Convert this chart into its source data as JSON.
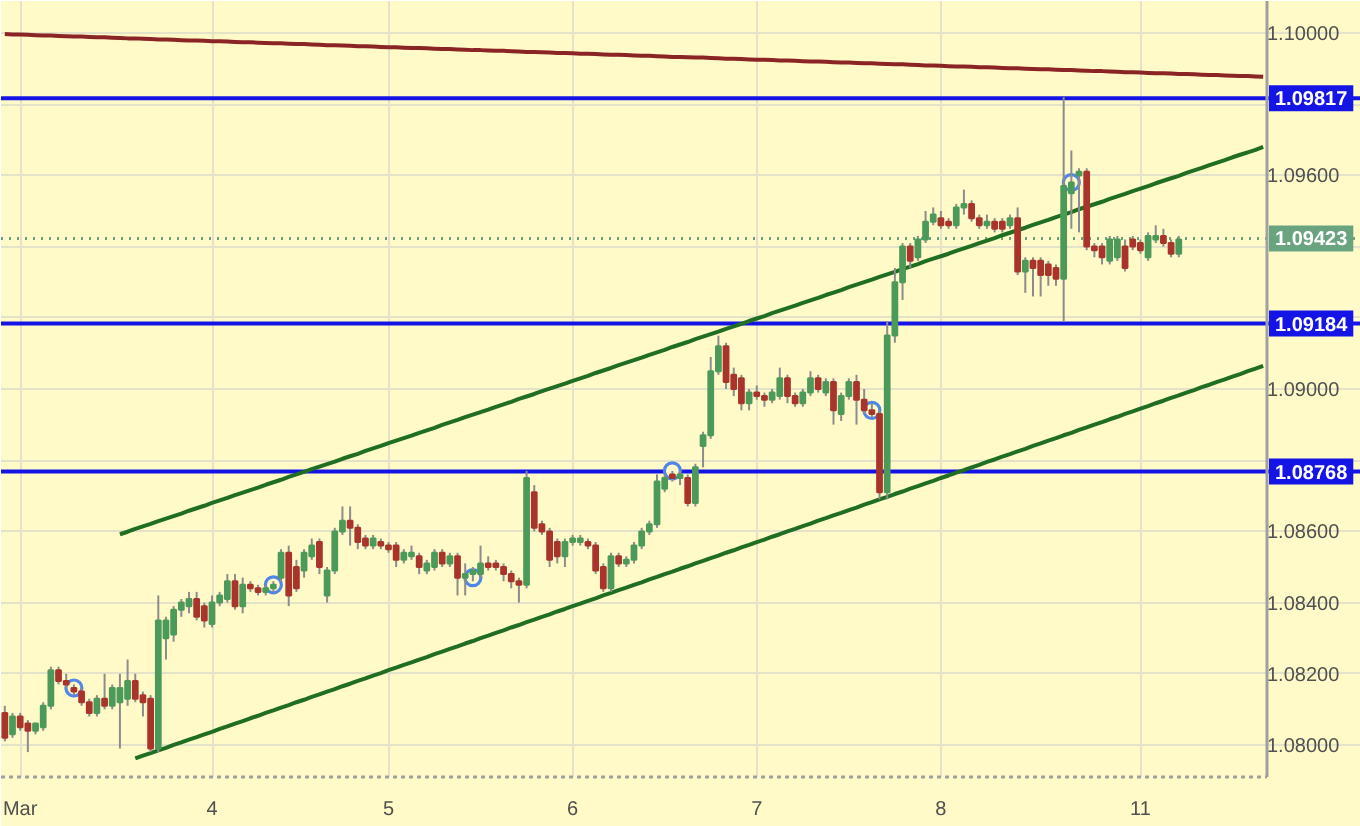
{
  "chart_data": {
    "type": "candlestick",
    "categories": [
      null,
      null,
      "Mar",
      null,
      null,
      null,
      null,
      null,
      null,
      null,
      null,
      null,
      null,
      null,
      null,
      null,
      null,
      null,
      null,
      null,
      null,
      null,
      null,
      null,
      null,
      null,
      null,
      "4",
      null,
      null,
      null,
      null,
      null,
      null,
      null,
      null,
      null,
      null,
      null,
      null,
      null,
      null,
      null,
      null,
      null,
      null,
      null,
      null,
      null,
      null,
      "5",
      null,
      null,
      null,
      null,
      null,
      null,
      null,
      null,
      null,
      null,
      null,
      null,
      null,
      null,
      null,
      null,
      null,
      null,
      null,
      null,
      null,
      null,
      null,
      "6",
      null,
      null,
      null,
      null,
      null,
      null,
      null,
      null,
      null,
      null,
      null,
      null,
      null,
      null,
      null,
      null,
      null,
      null,
      null,
      null,
      null,
      null,
      null,
      "7",
      null,
      null,
      null,
      null,
      null,
      null,
      null,
      null,
      null,
      null,
      null,
      null,
      null,
      null,
      null,
      null,
      null,
      null,
      null,
      null,
      null,
      null,
      null,
      "8",
      null,
      null,
      null,
      null,
      null,
      null,
      null,
      null,
      null,
      null,
      null,
      null,
      null,
      null,
      null,
      null,
      null,
      null,
      null,
      null,
      null,
      null,
      null,
      null,
      null,
      "11",
      null,
      null,
      null,
      null,
      null,
      null,
      null,
      null,
      null,
      null,
      null,
      null,
      null,
      null,
      null,
      null
    ],
    "ohlc": [
      [
        1.0809,
        1.0811,
        1.0801,
        1.0802
      ],
      [
        1.0803,
        1.0809,
        1.0802,
        1.0808
      ],
      [
        1.0808,
        1.0809,
        1.0804,
        1.0805
      ],
      [
        1.0806,
        1.0807,
        1.0798,
        1.0804
      ],
      [
        1.0804,
        1.0806,
        1.0803,
        1.0806
      ],
      [
        1.0805,
        1.0812,
        1.0804,
        1.0811
      ],
      [
        1.0811,
        1.0822,
        1.081,
        1.0821
      ],
      [
        1.0821,
        1.0822,
        1.0817,
        1.0818
      ],
      [
        1.0818,
        1.082,
        1.0816,
        1.0817
      ],
      [
        1.0816,
        1.0817,
        1.0814,
        1.0815
      ],
      [
        1.0815,
        1.0816,
        1.0811,
        1.0812
      ],
      [
        1.0812,
        1.0813,
        1.0808,
        1.0809
      ],
      [
        1.0809,
        1.0814,
        1.0808,
        1.0813
      ],
      [
        1.0813,
        1.082,
        1.081,
        1.0811
      ],
      [
        1.0811,
        1.0817,
        1.081,
        1.0816
      ],
      [
        1.0812,
        1.082,
        1.0799,
        1.0816
      ],
      [
        1.0813,
        1.0824,
        1.0811,
        1.0818
      ],
      [
        1.0818,
        1.082,
        1.0812,
        1.0813
      ],
      [
        1.0814,
        1.0815,
        1.0808,
        1.0812
      ],
      [
        1.0813,
        1.0814,
        1.0798,
        1.0799
      ],
      [
        1.0799,
        1.0842,
        1.0798,
        1.0835
      ],
      [
        1.083,
        1.0836,
        1.0824,
        1.0835
      ],
      [
        1.0831,
        1.0839,
        1.0829,
        1.0838
      ],
      [
        1.0838,
        1.0841,
        1.0836,
        1.084
      ],
      [
        1.0839,
        1.0843,
        1.0837,
        1.0841
      ],
      [
        1.0841,
        1.0843,
        1.0835,
        1.0836
      ],
      [
        1.0839,
        1.084,
        1.0833,
        1.0835
      ],
      [
        1.0834,
        1.0842,
        1.0833,
        1.084
      ],
      [
        1.084,
        1.0843,
        1.0839,
        1.0842
      ],
      [
        1.0841,
        1.0848,
        1.084,
        1.0846
      ],
      [
        1.0846,
        1.0848,
        1.0838,
        1.0839
      ],
      [
        1.0839,
        1.0847,
        1.0837,
        1.0845
      ],
      [
        1.0845,
        1.0846,
        1.0843,
        1.0844
      ],
      [
        1.0844,
        1.0845,
        1.0842,
        1.0843
      ],
      [
        1.0843,
        1.0845,
        1.0842,
        1.0844
      ],
      [
        1.0844,
        1.0846,
        1.0843,
        1.0845
      ],
      [
        1.0847,
        1.0855,
        1.0846,
        1.0854
      ],
      [
        1.0854,
        1.0856,
        1.0839,
        1.0842
      ],
      [
        1.085,
        1.0852,
        1.0843,
        1.0844
      ],
      [
        1.0849,
        1.0855,
        1.0847,
        1.0854
      ],
      [
        1.0853,
        1.0858,
        1.0852,
        1.0856
      ],
      [
        1.0857,
        1.0858,
        1.0848,
        1.085
      ],
      [
        1.0842,
        1.085,
        1.084,
        1.0849
      ],
      [
        1.0849,
        1.0861,
        1.0848,
        1.086
      ],
      [
        1.086,
        1.0867,
        1.0859,
        1.0863
      ],
      [
        1.0863,
        1.0867,
        1.0856,
        1.0861
      ],
      [
        1.0861,
        1.0862,
        1.0855,
        1.0857
      ],
      [
        1.0858,
        1.0859,
        1.0855,
        1.0856
      ],
      [
        1.0856,
        1.0859,
        1.0855,
        1.0858
      ],
      [
        1.0857,
        1.0858,
        1.0855,
        1.0856
      ],
      [
        1.0856,
        1.0857,
        1.0854,
        1.0855
      ],
      [
        1.0856,
        1.0857,
        1.085,
        1.0852
      ],
      [
        1.0852,
        1.0855,
        1.0851,
        1.0854
      ],
      [
        1.0853,
        1.0856,
        1.0852,
        1.0854
      ],
      [
        1.0853,
        1.0854,
        1.0848,
        1.085
      ],
      [
        1.0849,
        1.0852,
        1.0848,
        1.0851
      ],
      [
        1.085,
        1.0855,
        1.0849,
        1.0854
      ],
      [
        1.0854,
        1.0855,
        1.085,
        1.0851
      ],
      [
        1.0851,
        1.0854,
        1.085,
        1.0853
      ],
      [
        1.0853,
        1.0854,
        1.0842,
        1.0847
      ],
      [
        1.0847,
        1.0851,
        1.0842,
        1.0848
      ],
      [
        1.0848,
        1.085,
        1.0846,
        1.0849
      ],
      [
        1.0848,
        1.0856,
        1.0847,
        1.0851
      ],
      [
        1.0851,
        1.0853,
        1.0849,
        1.085
      ],
      [
        1.0851,
        1.0852,
        1.0849,
        1.085
      ],
      [
        1.085,
        1.0851,
        1.0846,
        1.0848
      ],
      [
        1.0848,
        1.0849,
        1.0844,
        1.0846
      ],
      [
        1.0846,
        1.0847,
        1.084,
        1.0845
      ],
      [
        1.0845,
        1.0877,
        1.0844,
        1.0875
      ],
      [
        1.0871,
        1.0873,
        1.086,
        1.0861
      ],
      [
        1.0862,
        1.0863,
        1.0859,
        1.086
      ],
      [
        1.086,
        1.0861,
        1.085,
        1.0852
      ],
      [
        1.0857,
        1.0858,
        1.0851,
        1.0853
      ],
      [
        1.0853,
        1.0858,
        1.085,
        1.0857
      ],
      [
        1.0857,
        1.0859,
        1.0856,
        1.0858
      ],
      [
        1.0857,
        1.0859,
        1.0856,
        1.0858
      ],
      [
        1.0857,
        1.0858,
        1.0855,
        1.0856
      ],
      [
        1.0856,
        1.0857,
        1.0848,
        1.0849
      ],
      [
        1.085,
        1.0851,
        1.0843,
        1.0844
      ],
      [
        1.0844,
        1.0854,
        1.0843,
        1.0853
      ],
      [
        1.0853,
        1.0854,
        1.085,
        1.0851
      ],
      [
        1.0851,
        1.0853,
        1.085,
        1.0852
      ],
      [
        1.0852,
        1.0857,
        1.0851,
        1.0856
      ],
      [
        1.0856,
        1.0861,
        1.0855,
        1.086
      ],
      [
        1.086,
        1.0863,
        1.0859,
        1.0862
      ],
      [
        1.0862,
        1.0876,
        1.0861,
        1.0874
      ],
      [
        1.0872,
        1.0876,
        1.0871,
        1.0875
      ],
      [
        1.0876,
        1.0877,
        1.0874,
        1.0875
      ],
      [
        1.0875,
        1.0877,
        1.0873,
        1.0876
      ],
      [
        1.0875,
        1.0876,
        1.0867,
        1.0868
      ],
      [
        1.0868,
        1.0879,
        1.0867,
        1.0878
      ],
      [
        1.0884,
        1.0888,
        1.0878,
        1.0887
      ],
      [
        1.0887,
        1.0909,
        1.0886,
        1.0905
      ],
      [
        1.0905,
        1.0915,
        1.0904,
        1.0912
      ],
      [
        1.0912,
        1.0913,
        1.09,
        1.0902
      ],
      [
        1.0904,
        1.0906,
        1.0898,
        1.09
      ],
      [
        1.0903,
        1.0904,
        1.0894,
        1.0896
      ],
      [
        1.0896,
        1.09,
        1.0894,
        1.0899
      ],
      [
        1.0899,
        1.0901,
        1.0897,
        1.0898
      ],
      [
        1.0898,
        1.0899,
        1.0895,
        1.0897
      ],
      [
        1.0897,
        1.09,
        1.0896,
        1.0899
      ],
      [
        1.0898,
        1.0906,
        1.0897,
        1.0903
      ],
      [
        1.0903,
        1.0904,
        1.0896,
        1.0898
      ],
      [
        1.0898,
        1.0899,
        1.0895,
        1.0896
      ],
      [
        1.0896,
        1.09,
        1.0895,
        1.0899
      ],
      [
        1.0899,
        1.0905,
        1.0898,
        1.0903
      ],
      [
        1.0903,
        1.0904,
        1.0899,
        1.09
      ],
      [
        1.0899,
        1.0903,
        1.0898,
        1.0902
      ],
      [
        1.0902,
        1.0903,
        1.089,
        1.0894
      ],
      [
        1.0893,
        1.0899,
        1.0891,
        1.0898
      ],
      [
        1.0898,
        1.0903,
        1.0897,
        1.0902
      ],
      [
        1.0902,
        1.0904,
        1.089,
        1.0897
      ],
      [
        1.0897,
        1.09,
        1.0893,
        1.0894
      ],
      [
        1.0894,
        1.0896,
        1.0892,
        1.0893
      ],
      [
        1.0893,
        1.0894,
        1.0869,
        1.0871
      ],
      [
        1.0871,
        1.0919,
        1.0869,
        1.0915
      ],
      [
        1.0915,
        1.0934,
        1.0913,
        1.093
      ],
      [
        1.093,
        1.0941,
        1.0925,
        1.094
      ],
      [
        1.094,
        1.0941,
        1.0934,
        1.0936
      ],
      [
        1.0937,
        1.0943,
        1.0936,
        1.0942
      ],
      [
        1.0942,
        1.095,
        1.0941,
        1.0947
      ],
      [
        1.0947,
        1.0951,
        1.0946,
        1.0949
      ],
      [
        1.0948,
        1.095,
        1.0945,
        1.0946
      ],
      [
        1.0947,
        1.0948,
        1.0945,
        1.0946
      ],
      [
        1.0946,
        1.0952,
        1.0945,
        1.0951
      ],
      [
        1.0951,
        1.0956,
        1.0949,
        1.0952
      ],
      [
        1.0952,
        1.0953,
        1.0947,
        1.0948
      ],
      [
        1.0948,
        1.0949,
        1.0945,
        1.0946
      ],
      [
        1.0946,
        1.0949,
        1.0945,
        1.0947
      ],
      [
        1.0947,
        1.0948,
        1.0944,
        1.0945
      ],
      [
        1.0947,
        1.0948,
        1.0944,
        1.0945
      ],
      [
        1.0946,
        1.0949,
        1.0945,
        1.0948
      ],
      [
        1.0948,
        1.0951,
        1.0932,
        1.0933
      ],
      [
        1.0933,
        1.0937,
        1.0927,
        1.0936
      ],
      [
        1.0936,
        1.0937,
        1.0926,
        1.0934
      ],
      [
        1.0936,
        1.0937,
        1.0926,
        1.0932
      ],
      [
        1.0935,
        1.0936,
        1.0929,
        1.0932
      ],
      [
        1.0934,
        1.0935,
        1.0929,
        1.0931
      ],
      [
        1.0931,
        1.0982,
        1.0919,
        1.0957
      ],
      [
        1.0955,
        1.0967,
        1.0945,
        1.0958
      ],
      [
        1.096,
        1.0962,
        1.0944,
        1.0961
      ],
      [
        1.0961,
        1.0962,
        1.0939,
        1.094
      ],
      [
        1.094,
        1.0941,
        1.0937,
        1.0939
      ],
      [
        1.094,
        1.0941,
        1.0935,
        1.0937
      ],
      [
        1.0936,
        1.0943,
        1.0935,
        1.0942
      ],
      [
        1.0937,
        1.0943,
        1.0936,
        1.0942
      ],
      [
        1.094,
        1.0942,
        1.0933,
        1.0934
      ],
      [
        1.0942,
        1.0943,
        1.0939,
        1.094
      ],
      [
        1.0941,
        1.0942,
        1.0938,
        1.0939
      ],
      [
        1.0937,
        1.0944,
        1.0936,
        1.0943
      ],
      [
        1.0942,
        1.0946,
        1.0941,
        1.0943
      ],
      [
        1.0943,
        1.0945,
        1.094,
        1.0941
      ],
      [
        1.0941,
        1.0942,
        1.0937,
        1.0938
      ],
      [
        1.0938,
        1.0943,
        1.0937,
        1.0942
      ],
      null,
      null,
      null,
      null,
      null,
      null,
      null,
      null,
      null,
      null,
      null
    ],
    "colors": [
      "#a8342c",
      "#4c9a5a",
      "#a8342c",
      "#a8342c",
      "#4c9a5a",
      "#4c9a5a",
      "#4c9a5a",
      "#a8342c",
      "#a8342c",
      "#a8342c",
      "#a8342c",
      "#a8342c",
      "#4c9a5a",
      "#a8342c",
      "#4c9a5a",
      "#4c9a5a",
      "#4c9a5a",
      "#a8342c",
      "#a8342c",
      "#a8342c",
      "#4c9a5a",
      "#4c9a5a",
      "#4c9a5a",
      "#4c9a5a",
      "#4c9a5a",
      "#a8342c",
      "#a8342c",
      "#4c9a5a",
      "#4c9a5a",
      "#4c9a5a",
      "#a8342c",
      "#4c9a5a",
      "#a8342c",
      "#a8342c",
      "#4c9a5a",
      "#4c9a5a",
      "#4c9a5a",
      "#a8342c",
      "#a8342c",
      "#4c9a5a",
      "#4c9a5a",
      "#a8342c",
      "#4c9a5a",
      "#4c9a5a",
      "#4c9a5a",
      "#a8342c",
      "#a8342c",
      "#a8342c",
      "#4c9a5a",
      "#a8342c",
      "#a8342c",
      "#a8342c",
      "#4c9a5a",
      "#4c9a5a",
      "#a8342c",
      "#4c9a5a",
      "#4c9a5a",
      "#a8342c",
      "#4c9a5a",
      "#a8342c",
      "#4c9a5a",
      "#4c9a5a",
      "#4c9a5a",
      "#a8342c",
      "#a8342c",
      "#a8342c",
      "#a8342c",
      "#a8342c",
      "#4c9a5a",
      "#a8342c",
      "#a8342c",
      "#a8342c",
      "#a8342c",
      "#4c9a5a",
      "#4c9a5a",
      "#4c9a5a",
      "#a8342c",
      "#a8342c",
      "#a8342c",
      "#4c9a5a",
      "#a8342c",
      "#4c9a5a",
      "#4c9a5a",
      "#4c9a5a",
      "#4c9a5a",
      "#4c9a5a",
      "#4c9a5a",
      "#a8342c",
      "#4c9a5a",
      "#a8342c",
      "#4c9a5a",
      "#4c9a5a",
      "#4c9a5a",
      "#4c9a5a",
      "#a8342c",
      "#a8342c",
      "#a8342c",
      "#4c9a5a",
      "#a8342c",
      "#a8342c",
      "#4c9a5a",
      "#4c9a5a",
      "#a8342c",
      "#a8342c",
      "#4c9a5a",
      "#4c9a5a",
      "#a8342c",
      "#4c9a5a",
      "#a8342c",
      "#4c9a5a",
      "#4c9a5a",
      "#a8342c",
      "#a8342c",
      "#a8342c",
      "#a8342c",
      "#4c9a5a",
      "#4c9a5a",
      "#4c9a5a",
      "#a8342c",
      "#4c9a5a",
      "#4c9a5a",
      "#4c9a5a",
      "#a8342c",
      "#a8342c",
      "#4c9a5a",
      "#4c9a5a",
      "#a8342c",
      "#a8342c",
      "#4c9a5a",
      "#a8342c",
      "#a8342c",
      "#4c9a5a",
      "#a8342c",
      "#4c9a5a",
      "#a8342c",
      "#a8342c",
      "#a8342c",
      "#a8342c",
      "#4c9a5a",
      "#4c9a5a",
      "#4c9a5a",
      "#a8342c",
      "#a8342c",
      "#a8342c",
      "#4c9a5a",
      "#4c9a5a",
      "#a8342c",
      "#a8342c",
      "#a8342c",
      "#4c9a5a",
      "#4c9a5a",
      "#a8342c",
      "#a8342c",
      "#4c9a5a",
      null,
      null,
      null,
      null,
      null,
      null,
      null,
      null,
      null,
      null,
      null
    ],
    "series": [
      {
        "type": "line",
        "color": "#8b2424",
        "values": [
          1.09997,
          1.09996,
          1.09996,
          1.09995,
          1.09994,
          1.09993,
          1.09993,
          1.09992,
          1.09991,
          1.0999,
          1.0999,
          1.09989,
          1.09988,
          1.09988,
          1.09987,
          1.09986,
          1.09985,
          1.09985,
          1.09984,
          1.09983,
          1.09982,
          1.09982,
          1.09981,
          1.0998,
          1.09979,
          1.09979,
          1.09978,
          1.09977,
          1.09977,
          1.09976,
          1.09975,
          1.09974,
          1.09974,
          1.09973,
          1.09972,
          1.09971,
          1.09971,
          1.0997,
          1.09969,
          1.09969,
          1.09968,
          1.09967,
          1.09966,
          1.09966,
          1.09965,
          1.09964,
          1.09963,
          1.09963,
          1.09962,
          1.09961,
          1.0996,
          1.0996,
          1.09959,
          1.09958,
          1.09958,
          1.09957,
          1.09956,
          1.09955,
          1.09955,
          1.09954,
          1.09953,
          1.09952,
          1.09952,
          1.09951,
          1.0995,
          1.0995,
          1.09949,
          1.09948,
          1.09947,
          1.09947,
          1.09946,
          1.09945,
          1.09944,
          1.09944,
          1.09943,
          1.09942,
          1.09942,
          1.09941,
          1.0994,
          1.09939,
          1.09939,
          1.09938,
          1.09937,
          1.09936,
          1.09936,
          1.09935,
          1.09934,
          1.09933,
          1.09933,
          1.09932,
          1.09931,
          1.09931,
          1.0993,
          1.09929,
          1.09928,
          1.09928,
          1.09927,
          1.09926,
          1.09925,
          1.09925,
          1.09924,
          1.09923,
          1.09923,
          1.09922,
          1.09921,
          1.0992,
          1.0992,
          1.09919,
          1.09918,
          1.09917,
          1.09917,
          1.09916,
          1.09915,
          1.09915,
          1.09914,
          1.09913,
          1.09912,
          1.09912,
          1.09911,
          1.0991,
          1.09909,
          1.09909,
          1.09908,
          1.09907,
          1.09906,
          1.09906,
          1.09905,
          1.09904,
          1.09904,
          1.09903,
          1.09902,
          1.09901,
          1.09901,
          1.099,
          1.09899,
          1.09898,
          1.09898,
          1.09897,
          1.09896,
          1.09896,
          1.09895,
          1.09894,
          1.09893,
          1.09893,
          1.09892,
          1.09891,
          1.0989,
          1.0989,
          1.09889,
          1.09888,
          1.09887,
          1.09887,
          1.09886,
          1.09885,
          1.09885,
          1.09884,
          1.09883,
          1.09882,
          1.09882,
          1.09881,
          1.0988,
          1.09879,
          1.09879,
          1.09878,
          1.09877
        ]
      },
      {
        "type": "line",
        "color": "#1f6e24",
        "values": [
          null,
          null,
          null,
          null,
          null,
          null,
          null,
          null,
          null,
          null,
          null,
          null,
          null,
          null,
          null,
          1.08592,
          1.08599,
          1.08607,
          1.08614,
          1.08621,
          1.08629,
          1.08636,
          1.08643,
          1.0865,
          1.08658,
          1.08665,
          1.08672,
          1.0868,
          1.08687,
          1.08694,
          1.08702,
          1.08709,
          1.08716,
          1.08723,
          1.08731,
          1.08738,
          1.08745,
          1.08753,
          1.0876,
          1.08767,
          1.08775,
          1.08782,
          1.08789,
          1.08796,
          1.08804,
          1.08811,
          1.08818,
          1.08826,
          1.08833,
          1.0884,
          1.08848,
          1.08855,
          1.08862,
          1.08869,
          1.08877,
          1.08884,
          1.08891,
          1.08899,
          1.08906,
          1.08913,
          1.08921,
          1.08928,
          1.08935,
          1.08942,
          1.0895,
          1.08957,
          1.08964,
          1.08972,
          1.08979,
          1.08986,
          1.08994,
          1.09001,
          1.09008,
          1.09015,
          1.09023,
          1.0903,
          1.09037,
          1.09045,
          1.09052,
          1.09059,
          1.09067,
          1.09074,
          1.09081,
          1.09088,
          1.09096,
          1.09103,
          1.0911,
          1.09118,
          1.09125,
          1.09132,
          1.0914,
          1.09147,
          1.09154,
          1.09161,
          1.09169,
          1.09176,
          1.09183,
          1.09191,
          1.09198,
          1.09205,
          1.09213,
          1.0922,
          1.09227,
          1.09234,
          1.09242,
          1.09249,
          1.09256,
          1.09264,
          1.09271,
          1.09278,
          1.09286,
          1.09293,
          1.093,
          1.09307,
          1.09315,
          1.09322,
          1.09329,
          1.09337,
          1.09344,
          1.09351,
          1.09359,
          1.09366,
          1.09373,
          1.0938,
          1.09388,
          1.09395,
          1.09402,
          1.0941,
          1.09417,
          1.09424,
          1.09432,
          1.09439,
          1.09446,
          1.09453,
          1.09461,
          1.09468,
          1.09475,
          1.09483,
          1.0949,
          1.09497,
          1.09505,
          1.09512,
          1.09519,
          1.09526,
          1.09534,
          1.09541,
          1.09548,
          1.09556,
          1.09563,
          1.0957,
          1.09578,
          1.09585,
          1.09592,
          1.09599,
          1.09607,
          1.09614,
          1.09621,
          1.09629,
          1.09636,
          1.09643,
          1.09651,
          1.09658,
          1.09665,
          1.09672,
          1.0968
        ]
      },
      {
        "type": "line",
        "color": "#1f6e24",
        "values": [
          null,
          null,
          null,
          null,
          null,
          null,
          null,
          null,
          null,
          null,
          null,
          null,
          null,
          null,
          null,
          null,
          null,
          1.07962,
          1.0797,
          1.07977,
          1.07985,
          1.07992,
          1.08,
          1.08007,
          1.08015,
          1.08022,
          1.0803,
          1.08037,
          1.08045,
          1.08052,
          1.0806,
          1.08067,
          1.08075,
          1.08082,
          1.0809,
          1.08097,
          1.08105,
          1.08112,
          1.0812,
          1.08127,
          1.08135,
          1.08142,
          1.0815,
          1.08157,
          1.08165,
          1.08172,
          1.0818,
          1.08187,
          1.08195,
          1.08202,
          1.0821,
          1.08217,
          1.08225,
          1.08232,
          1.0824,
          1.08247,
          1.08255,
          1.08262,
          1.0827,
          1.08277,
          1.08285,
          1.08292,
          1.083,
          1.08307,
          1.08315,
          1.08322,
          1.0833,
          1.08337,
          1.08345,
          1.08352,
          1.0836,
          1.08367,
          1.08375,
          1.08382,
          1.0839,
          1.08397,
          1.08405,
          1.08412,
          1.0842,
          1.08427,
          1.08435,
          1.08442,
          1.0845,
          1.08457,
          1.08465,
          1.08472,
          1.0848,
          1.08487,
          1.08495,
          1.08502,
          1.0851,
          1.08517,
          1.08525,
          1.08532,
          1.0854,
          1.08547,
          1.08555,
          1.08562,
          1.0857,
          1.08577,
          1.08585,
          1.08592,
          1.086,
          1.08607,
          1.08615,
          1.08622,
          1.0863,
          1.08637,
          1.08645,
          1.08652,
          1.0866,
          1.08667,
          1.08675,
          1.08682,
          1.0869,
          1.08697,
          1.08705,
          1.08712,
          1.0872,
          1.08727,
          1.08735,
          1.08742,
          1.0875,
          1.08757,
          1.08765,
          1.08772,
          1.0878,
          1.08787,
          1.08795,
          1.08802,
          1.0881,
          1.08817,
          1.08825,
          1.08832,
          1.0884,
          1.08847,
          1.08855,
          1.08862,
          1.0887,
          1.08877,
          1.08885,
          1.08892,
          1.089,
          1.08907,
          1.08915,
          1.08922,
          1.0893,
          1.08937,
          1.08945,
          1.08952,
          1.0896,
          1.08967,
          1.08975,
          1.08982,
          1.0899,
          1.08997,
          1.09005,
          1.09012,
          1.0902,
          1.09027,
          1.09035,
          1.09042,
          1.0905,
          1.09057,
          1.09065
        ]
      },
      {
        "type": "scatter",
        "color": "#4f86e8",
        "marker": "circle",
        "values": [
          null,
          null,
          null,
          null,
          null,
          null,
          null,
          null,
          null,
          1.0816,
          null,
          null,
          null,
          null,
          null,
          null,
          null,
          null,
          null,
          null,
          null,
          null,
          null,
          null,
          null,
          null,
          null,
          null,
          null,
          null,
          null,
          null,
          null,
          null,
          null,
          1.0845,
          null,
          null,
          null,
          null,
          null,
          null,
          null,
          null,
          null,
          null,
          null,
          null,
          null,
          null,
          null,
          null,
          null,
          null,
          null,
          null,
          null,
          null,
          null,
          null,
          null,
          1.0847,
          null,
          null,
          null,
          null,
          null,
          null,
          null,
          null,
          null,
          null,
          null,
          null,
          null,
          null,
          null,
          null,
          null,
          null,
          null,
          null,
          null,
          null,
          null,
          null,
          null,
          1.0877,
          null,
          null,
          null,
          null,
          null,
          null,
          null,
          null,
          null,
          null,
          null,
          null,
          null,
          null,
          null,
          null,
          null,
          null,
          null,
          null,
          null,
          null,
          null,
          null,
          null,
          1.0894,
          null,
          null,
          null,
          null,
          null,
          null,
          null,
          null,
          null,
          null,
          null,
          null,
          null,
          null,
          null,
          null,
          null,
          null,
          null,
          null,
          null,
          null,
          null,
          null,
          null,
          1.0958,
          null,
          null,
          null,
          null,
          null,
          null,
          null,
          null,
          null,
          null,
          null,
          null,
          null,
          null,
          null,
          null,
          null,
          null,
          null,
          null,
          null,
          null,
          null,
          null,
          null
        ]
      }
    ],
    "ref_lines": [
      {
        "axis": "y",
        "value": 1.09817,
        "label": "1.09817",
        "color": "#1414e6"
      },
      {
        "axis": "y",
        "value": 1.09184,
        "label": "1.09184",
        "color": "#1414e6"
      },
      {
        "axis": "y",
        "value": 1.08768,
        "label": "1.08768",
        "color": "#1414e6"
      },
      {
        "axis": "y",
        "value": 1.09423,
        "label": "1.09423",
        "color": "#6aa37f",
        "line_style": "dotted"
      }
    ],
    "ylim": [
      1.0791,
      1.1009
    ],
    "yticks": [
      {
        "value": 1.08,
        "label": "1.08000"
      },
      {
        "value": 1.082,
        "label": "1.08200"
      },
      {
        "value": 1.084,
        "label": "1.08400"
      },
      {
        "value": 1.086,
        "label": "1.08600"
      },
      {
        "value": 1.088,
        "label": null
      },
      {
        "value": 1.09,
        "label": "1.09000"
      },
      {
        "value": 1.092,
        "label": null
      },
      {
        "value": 1.094,
        "label": null
      },
      {
        "value": 1.096,
        "label": "1.09600"
      },
      {
        "value": 1.098,
        "label": null
      },
      {
        "value": 1.1,
        "label": "1.10000"
      }
    ],
    "grid": true
  }
}
